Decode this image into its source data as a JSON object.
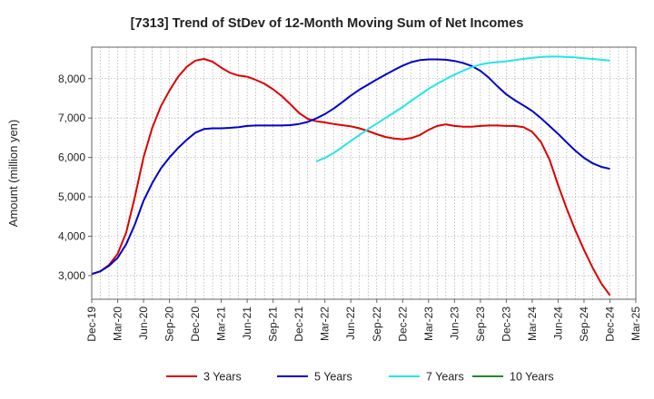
{
  "chart_data": {
    "type": "line",
    "title": "[7313]  Trend of StDev of 12-Month Moving Sum of Net Incomes",
    "ylabel": "Amount (million yen)",
    "xlabel": "",
    "x_ticks": [
      "Dec-19",
      "Mar-20",
      "Jun-20",
      "Sep-20",
      "Dec-20",
      "Mar-21",
      "Jun-21",
      "Sep-21",
      "Dec-21",
      "Mar-22",
      "Jun-22",
      "Sep-22",
      "Dec-22",
      "Mar-23",
      "Jun-23",
      "Sep-23",
      "Dec-23",
      "Mar-24",
      "Jun-24",
      "Sep-24",
      "Dec-24",
      "Mar-25"
    ],
    "y_ticks": [
      "3,000",
      "4,000",
      "5,000",
      "6,000",
      "7,000",
      "8,000"
    ],
    "y_tick_values": [
      3000,
      4000,
      5000,
      6000,
      7000,
      8000
    ],
    "ylim": [
      2400,
      8800
    ],
    "grid": true,
    "legend_position": "bottom",
    "series": [
      {
        "name": "3 Years",
        "color": "#dd0000",
        "points": [
          [
            "2019-12",
            3040
          ],
          [
            "2020-01",
            3110
          ],
          [
            "2020-02",
            3270
          ],
          [
            "2020-03",
            3550
          ],
          [
            "2020-04",
            4100
          ],
          [
            "2020-05",
            5000
          ],
          [
            "2020-06",
            6000
          ],
          [
            "2020-07",
            6750
          ],
          [
            "2020-08",
            7300
          ],
          [
            "2020-09",
            7700
          ],
          [
            "2020-10",
            8050
          ],
          [
            "2020-11",
            8300
          ],
          [
            "2020-12",
            8460
          ],
          [
            "2021-01",
            8500
          ],
          [
            "2021-02",
            8430
          ],
          [
            "2021-03",
            8280
          ],
          [
            "2021-04",
            8150
          ],
          [
            "2021-05",
            8080
          ],
          [
            "2021-06",
            8050
          ],
          [
            "2021-07",
            7970
          ],
          [
            "2021-08",
            7870
          ],
          [
            "2021-09",
            7730
          ],
          [
            "2021-10",
            7560
          ],
          [
            "2021-11",
            7350
          ],
          [
            "2021-12",
            7130
          ],
          [
            "2022-01",
            6980
          ],
          [
            "2022-02",
            6920
          ],
          [
            "2022-03",
            6890
          ],
          [
            "2022-04",
            6850
          ],
          [
            "2022-05",
            6820
          ],
          [
            "2022-06",
            6790
          ],
          [
            "2022-07",
            6740
          ],
          [
            "2022-08",
            6670
          ],
          [
            "2022-09",
            6590
          ],
          [
            "2022-10",
            6520
          ],
          [
            "2022-11",
            6480
          ],
          [
            "2022-12",
            6460
          ],
          [
            "2023-01",
            6490
          ],
          [
            "2023-02",
            6570
          ],
          [
            "2023-03",
            6700
          ],
          [
            "2023-04",
            6800
          ],
          [
            "2023-05",
            6840
          ],
          [
            "2023-06",
            6800
          ],
          [
            "2023-07",
            6780
          ],
          [
            "2023-08",
            6780
          ],
          [
            "2023-09",
            6800
          ],
          [
            "2023-10",
            6810
          ],
          [
            "2023-11",
            6810
          ],
          [
            "2023-12",
            6800
          ],
          [
            "2024-01",
            6800
          ],
          [
            "2024-02",
            6770
          ],
          [
            "2024-03",
            6650
          ],
          [
            "2024-04",
            6400
          ],
          [
            "2024-05",
            5950
          ],
          [
            "2024-06",
            5300
          ],
          [
            "2024-07",
            4700
          ],
          [
            "2024-08",
            4150
          ],
          [
            "2024-09",
            3650
          ],
          [
            "2024-10",
            3200
          ],
          [
            "2024-11",
            2800
          ],
          [
            "2024-12",
            2500
          ]
        ]
      },
      {
        "name": "5 Years",
        "color": "#0000cc",
        "points": [
          [
            "2019-12",
            3040
          ],
          [
            "2020-01",
            3110
          ],
          [
            "2020-02",
            3250
          ],
          [
            "2020-03",
            3450
          ],
          [
            "2020-04",
            3800
          ],
          [
            "2020-05",
            4300
          ],
          [
            "2020-06",
            4900
          ],
          [
            "2020-07",
            5350
          ],
          [
            "2020-08",
            5720
          ],
          [
            "2020-09",
            6000
          ],
          [
            "2020-10",
            6240
          ],
          [
            "2020-11",
            6450
          ],
          [
            "2020-12",
            6630
          ],
          [
            "2021-01",
            6720
          ],
          [
            "2021-02",
            6740
          ],
          [
            "2021-03",
            6740
          ],
          [
            "2021-04",
            6750
          ],
          [
            "2021-05",
            6770
          ],
          [
            "2021-06",
            6800
          ],
          [
            "2021-07",
            6810
          ],
          [
            "2021-08",
            6810
          ],
          [
            "2021-09",
            6810
          ],
          [
            "2021-10",
            6810
          ],
          [
            "2021-11",
            6820
          ],
          [
            "2021-12",
            6850
          ],
          [
            "2022-01",
            6900
          ],
          [
            "2022-02",
            6990
          ],
          [
            "2022-03",
            7100
          ],
          [
            "2022-04",
            7240
          ],
          [
            "2022-05",
            7400
          ],
          [
            "2022-06",
            7570
          ],
          [
            "2022-07",
            7720
          ],
          [
            "2022-08",
            7850
          ],
          [
            "2022-09",
            7980
          ],
          [
            "2022-10",
            8100
          ],
          [
            "2022-11",
            8220
          ],
          [
            "2022-12",
            8330
          ],
          [
            "2023-01",
            8420
          ],
          [
            "2023-02",
            8470
          ],
          [
            "2023-03",
            8490
          ],
          [
            "2023-04",
            8490
          ],
          [
            "2023-05",
            8480
          ],
          [
            "2023-06",
            8450
          ],
          [
            "2023-07",
            8400
          ],
          [
            "2023-08",
            8320
          ],
          [
            "2023-09",
            8200
          ],
          [
            "2023-10",
            8020
          ],
          [
            "2023-11",
            7800
          ],
          [
            "2023-12",
            7600
          ],
          [
            "2024-01",
            7450
          ],
          [
            "2024-02",
            7320
          ],
          [
            "2024-03",
            7180
          ],
          [
            "2024-04",
            7000
          ],
          [
            "2024-05",
            6800
          ],
          [
            "2024-06",
            6600
          ],
          [
            "2024-07",
            6380
          ],
          [
            "2024-08",
            6170
          ],
          [
            "2024-09",
            5990
          ],
          [
            "2024-10",
            5850
          ],
          [
            "2024-11",
            5760
          ],
          [
            "2024-12",
            5710
          ]
        ]
      },
      {
        "name": "7 Years",
        "color": "#22e6e6",
        "points": [
          [
            "2022-02",
            5900
          ],
          [
            "2022-03",
            5990
          ],
          [
            "2022-04",
            6110
          ],
          [
            "2022-05",
            6260
          ],
          [
            "2022-06",
            6420
          ],
          [
            "2022-07",
            6570
          ],
          [
            "2022-08",
            6720
          ],
          [
            "2022-09",
            6860
          ],
          [
            "2022-10",
            7000
          ],
          [
            "2022-11",
            7140
          ],
          [
            "2022-12",
            7280
          ],
          [
            "2023-01",
            7440
          ],
          [
            "2023-02",
            7590
          ],
          [
            "2023-03",
            7740
          ],
          [
            "2023-04",
            7870
          ],
          [
            "2023-05",
            7990
          ],
          [
            "2023-06",
            8100
          ],
          [
            "2023-07",
            8200
          ],
          [
            "2023-08",
            8290
          ],
          [
            "2023-09",
            8360
          ],
          [
            "2023-10",
            8400
          ],
          [
            "2023-11",
            8420
          ],
          [
            "2023-12",
            8440
          ],
          [
            "2024-01",
            8470
          ],
          [
            "2024-02",
            8500
          ],
          [
            "2024-03",
            8530
          ],
          [
            "2024-04",
            8550
          ],
          [
            "2024-05",
            8560
          ],
          [
            "2024-06",
            8560
          ],
          [
            "2024-07",
            8550
          ],
          [
            "2024-08",
            8540
          ],
          [
            "2024-09",
            8520
          ],
          [
            "2024-10",
            8500
          ],
          [
            "2024-11",
            8480
          ],
          [
            "2024-12",
            8460
          ]
        ]
      },
      {
        "name": "10 Years",
        "color": "#228b22",
        "points": []
      }
    ]
  }
}
